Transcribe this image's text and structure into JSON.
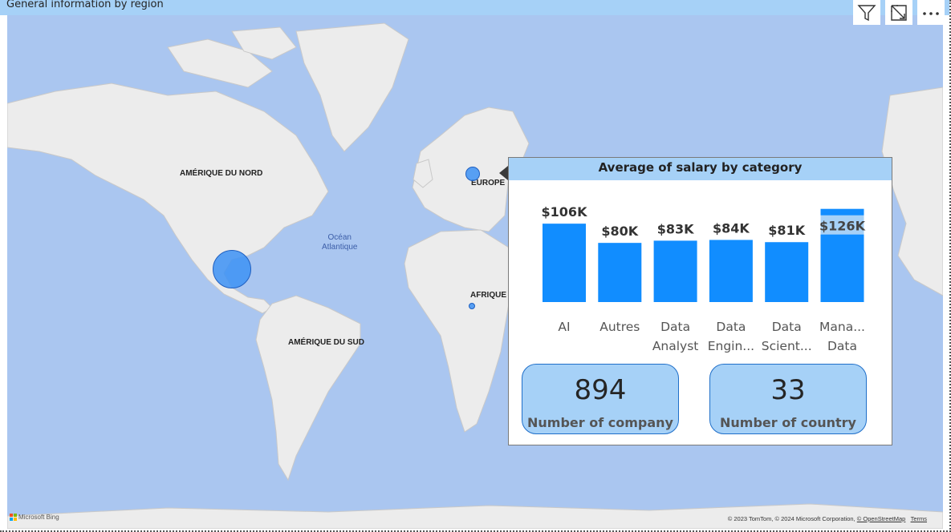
{
  "visual_title": "General information by region",
  "toolbar": {
    "filter_icon": "filter-icon",
    "focus_icon": "focus-mode-icon",
    "more_icon": "more-options-icon"
  },
  "map": {
    "continent_labels": [
      "AMÉRIQUE DU NORD",
      "EUROPE",
      "AFRIQUE",
      "AMÉRIQUE DU SUD"
    ],
    "ocean_label_line1": "Océan",
    "ocean_label_line2": "Atlantique",
    "attribution_brand": "Microsoft Bing",
    "copyright": "© 2023 TomTom, © 2024 Microsoft Corporation,",
    "osm_link": "© OpenStreetMap",
    "terms_link": "Terms",
    "colors": {
      "water": "#aac6f0",
      "land": "#ececec",
      "bubble": "#3d92f5"
    }
  },
  "salary_panel": {
    "title": "Average of salary by category",
    "chart_data": {
      "type": "bar",
      "title": "Average of salary by category",
      "categories": [
        [
          "AI"
        ],
        [
          "Autres"
        ],
        [
          "Data",
          "Analyst"
        ],
        [
          "Data",
          "Engin..."
        ],
        [
          "Data",
          "Scient..."
        ],
        [
          "Mana...",
          "Data"
        ]
      ],
      "values": [
        106,
        80,
        83,
        84,
        81,
        126
      ],
      "data_labels": [
        "$106K",
        "$80K",
        "$83K",
        "$84K",
        "$81K",
        "$126K"
      ],
      "unit": "K",
      "ylim": [
        0,
        130
      ],
      "bar_color": "#118dff"
    }
  },
  "kpis": [
    {
      "value": "894",
      "label": "Number of company"
    },
    {
      "value": "33",
      "label": "Number of country"
    }
  ]
}
